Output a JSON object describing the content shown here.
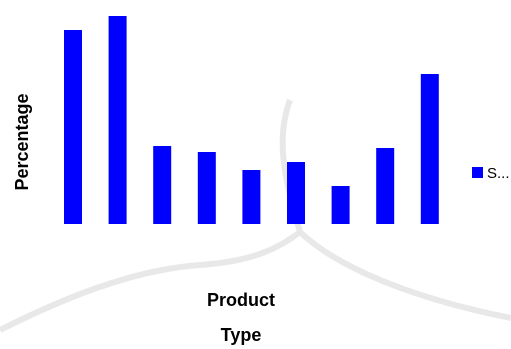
{
  "chart_data": {
    "type": "bar",
    "title": "",
    "xlabel_lines": [
      "Product",
      "Type"
    ],
    "ylabel": "Percentage",
    "categories": [
      "",
      "",
      "",
      "",
      "",
      "",
      "",
      "",
      ""
    ],
    "series": [
      {
        "name": "S...",
        "color": "#0000ff",
        "values": [
          97,
          104,
          39,
          36,
          27,
          31,
          19,
          38,
          75
        ]
      }
    ],
    "ylim": [
      0,
      110
    ],
    "grid": false,
    "legend_position": "right"
  },
  "colors": {
    "background": "#ffffff",
    "watermark": "#e6e6e6"
  }
}
